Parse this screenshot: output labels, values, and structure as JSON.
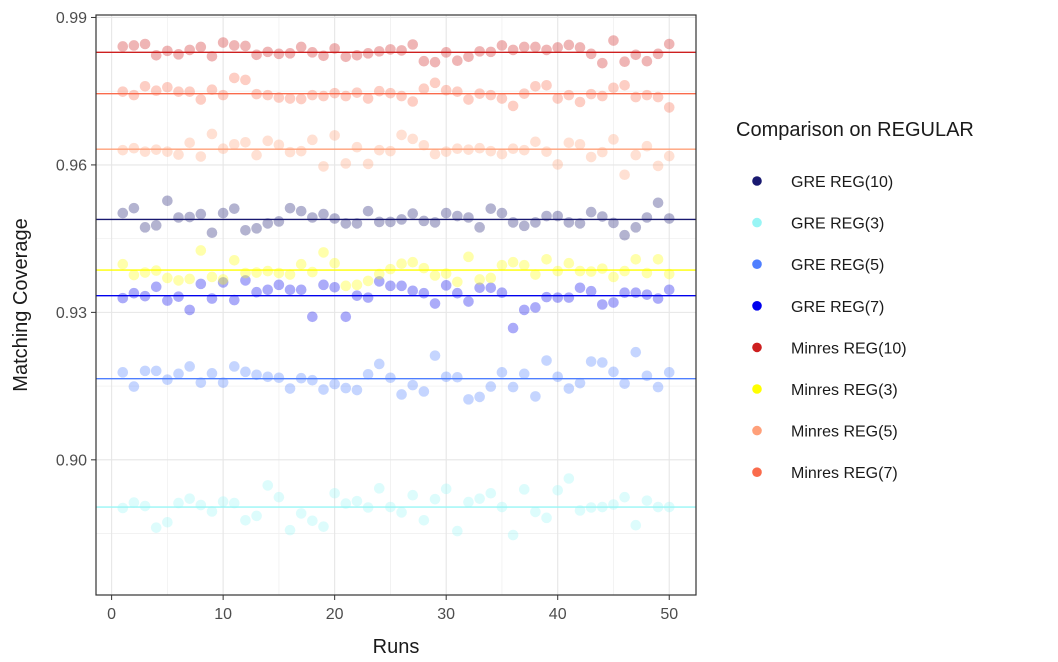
{
  "chart_data": {
    "type": "scatter",
    "title": "",
    "xlabel": "Runs",
    "ylabel": "Matching Coverage",
    "xlim": [
      -1.4,
      52.4
    ],
    "ylim": [
      0.8725,
      0.9905
    ],
    "xticks": [
      0,
      10,
      20,
      30,
      40,
      50
    ],
    "xtick_labels": [
      "0",
      "10",
      "20",
      "30",
      "40",
      "50"
    ],
    "yticks": [
      0.9,
      0.93,
      0.96,
      0.99
    ],
    "ytick_labels": [
      "0.90",
      "0.93",
      "0.96",
      "0.99"
    ],
    "grid": true,
    "legend": {
      "title": "Comparison on REGULAR",
      "position": "right"
    },
    "x": [
      1,
      2,
      3,
      4,
      5,
      6,
      7,
      8,
      9,
      10,
      11,
      12,
      13,
      14,
      15,
      16,
      17,
      18,
      19,
      20,
      21,
      22,
      23,
      24,
      25,
      26,
      27,
      28,
      29,
      30,
      31,
      32,
      33,
      34,
      35,
      36,
      37,
      38,
      39,
      40,
      41,
      42,
      43,
      44,
      45,
      46,
      47,
      48,
      49,
      50
    ],
    "series": [
      {
        "name": "GRE REG(10)",
        "color": "#191970",
        "mean": 0.9489,
        "values": [
          0.9502,
          0.9512,
          0.9473,
          0.9477,
          0.9527,
          0.9493,
          0.9494,
          0.95,
          0.9462,
          0.9502,
          0.9511,
          0.9467,
          0.9471,
          0.9481,
          0.9485,
          0.9512,
          0.9506,
          0.9493,
          0.95,
          0.9491,
          0.9481,
          0.9481,
          0.9506,
          0.9484,
          0.9484,
          0.9489,
          0.9501,
          0.9486,
          0.9483,
          0.9502,
          0.9496,
          0.9493,
          0.9473,
          0.9511,
          0.9502,
          0.9483,
          0.9476,
          0.9483,
          0.9496,
          0.9496,
          0.9483,
          0.9481,
          0.9504,
          0.9495,
          0.9482,
          0.9457,
          0.9473,
          0.9493,
          0.9523,
          0.9491
        ]
      },
      {
        "name": "GRE REG(3)",
        "color": "#98f5f5",
        "mean": 0.8904,
        "values": [
          0.8902,
          0.8913,
          0.8906,
          0.8862,
          0.8873,
          0.8912,
          0.8921,
          0.8908,
          0.8895,
          0.8915,
          0.8912,
          0.8877,
          0.8886,
          0.8948,
          0.8924,
          0.8857,
          0.8891,
          0.8876,
          0.8864,
          0.8932,
          0.8911,
          0.8916,
          0.8903,
          0.8942,
          0.8904,
          0.8893,
          0.8928,
          0.8877,
          0.892,
          0.8941,
          0.8855,
          0.8914,
          0.8921,
          0.8932,
          0.8904,
          0.8847,
          0.894,
          0.8894,
          0.8882,
          0.8938,
          0.8962,
          0.8897,
          0.8903,
          0.8904,
          0.8909,
          0.8924,
          0.8867,
          0.8917,
          0.8904,
          0.8904
        ]
      },
      {
        "name": "GRE REG(5)",
        "color": "#4f7fff",
        "mean": 0.9165,
        "values": [
          0.9178,
          0.9149,
          0.9181,
          0.9181,
          0.9163,
          0.9175,
          0.919,
          0.9157,
          0.9176,
          0.9157,
          0.919,
          0.9179,
          0.9173,
          0.9169,
          0.9167,
          0.9145,
          0.9166,
          0.9162,
          0.9143,
          0.9154,
          0.9146,
          0.9142,
          0.9174,
          0.9195,
          0.9167,
          0.9133,
          0.9152,
          0.9139,
          0.9212,
          0.9169,
          0.9168,
          0.9123,
          0.9128,
          0.9149,
          0.9178,
          0.9148,
          0.9175,
          0.9129,
          0.9202,
          0.9169,
          0.9145,
          0.9156,
          0.92,
          0.9198,
          0.9179,
          0.9155,
          0.9219,
          0.9171,
          0.9148,
          0.9178
        ]
      },
      {
        "name": "GRE REG(7)",
        "color": "#0000ee",
        "mean": 0.9334,
        "values": [
          0.9329,
          0.9339,
          0.9333,
          0.9352,
          0.9324,
          0.9332,
          0.9305,
          0.9358,
          0.9328,
          0.9361,
          0.9325,
          0.9365,
          0.9341,
          0.9346,
          0.9356,
          0.9346,
          0.9346,
          0.9291,
          0.9356,
          0.9351,
          0.9291,
          0.9334,
          0.933,
          0.9363,
          0.9354,
          0.9354,
          0.9344,
          0.9339,
          0.9318,
          0.9355,
          0.9339,
          0.9322,
          0.935,
          0.935,
          0.934,
          0.9268,
          0.9305,
          0.931,
          0.9331,
          0.933,
          0.933,
          0.935,
          0.9343,
          0.9316,
          0.932,
          0.934,
          0.934,
          0.9336,
          0.9328,
          0.9346
        ]
      },
      {
        "name": "Minres REG(10)",
        "color": "#cd1f1f",
        "mean": 0.9829,
        "values": [
          0.9841,
          0.9843,
          0.9846,
          0.9823,
          0.9832,
          0.9825,
          0.9834,
          0.984,
          0.9821,
          0.9849,
          0.9843,
          0.9842,
          0.9824,
          0.983,
          0.9826,
          0.9827,
          0.984,
          0.9829,
          0.9822,
          0.9837,
          0.982,
          0.9823,
          0.9827,
          0.9831,
          0.9835,
          0.9833,
          0.9845,
          0.9811,
          0.9809,
          0.9829,
          0.9812,
          0.982,
          0.9831,
          0.983,
          0.9843,
          0.9834,
          0.984,
          0.984,
          0.9834,
          0.9839,
          0.9844,
          0.9839,
          0.9826,
          0.9807,
          0.9853,
          0.981,
          0.9824,
          0.9811,
          0.9826,
          0.9846
        ]
      },
      {
        "name": "Minres REG(3)",
        "color": "#ffff00",
        "mean": 0.9386,
        "values": [
          0.9398,
          0.9376,
          0.9381,
          0.9385,
          0.937,
          0.9365,
          0.9368,
          0.9426,
          0.9372,
          0.9367,
          0.9406,
          0.938,
          0.9381,
          0.9384,
          0.938,
          0.9377,
          0.9398,
          0.9382,
          0.9422,
          0.94,
          0.9354,
          0.9356,
          0.9364,
          0.9378,
          0.9388,
          0.9399,
          0.9402,
          0.939,
          0.9375,
          0.9379,
          0.9362,
          0.9413,
          0.9367,
          0.937,
          0.9396,
          0.9402,
          0.9396,
          0.9377,
          0.9408,
          0.9384,
          0.94,
          0.9384,
          0.9383,
          0.9389,
          0.9372,
          0.9384,
          0.9408,
          0.938,
          0.9408,
          0.9378
        ]
      },
      {
        "name": "Minres REG(5)",
        "color": "#ffa07a",
        "mean": 0.9632,
        "values": [
          0.963,
          0.9634,
          0.9627,
          0.9631,
          0.9627,
          0.9621,
          0.9645,
          0.9617,
          0.9663,
          0.9633,
          0.9642,
          0.9646,
          0.962,
          0.9649,
          0.9641,
          0.9626,
          0.9628,
          0.9651,
          0.9597,
          0.966,
          0.9603,
          0.9636,
          0.9602,
          0.963,
          0.9628,
          0.9661,
          0.9653,
          0.964,
          0.9622,
          0.9627,
          0.9633,
          0.9631,
          0.9634,
          0.9628,
          0.9622,
          0.9633,
          0.963,
          0.9647,
          0.9627,
          0.9601,
          0.9645,
          0.9642,
          0.9616,
          0.9626,
          0.9652,
          0.958,
          0.962,
          0.9638,
          0.9598,
          0.9618
        ]
      },
      {
        "name": "Minres REG(7)",
        "color": "#fa6b4c",
        "mean": 0.9745,
        "values": [
          0.9749,
          0.9742,
          0.976,
          0.9751,
          0.9758,
          0.9749,
          0.9749,
          0.9733,
          0.9753,
          0.9742,
          0.9777,
          0.9773,
          0.9744,
          0.9742,
          0.9737,
          0.9735,
          0.9734,
          0.9742,
          0.974,
          0.9746,
          0.974,
          0.9747,
          0.9735,
          0.975,
          0.9746,
          0.974,
          0.9729,
          0.9755,
          0.9767,
          0.9752,
          0.9749,
          0.9733,
          0.9745,
          0.9742,
          0.9735,
          0.972,
          0.9745,
          0.976,
          0.9762,
          0.9735,
          0.9742,
          0.9728,
          0.9744,
          0.974,
          0.9757,
          0.9762,
          0.9738,
          0.9742,
          0.9738,
          0.9717
        ]
      }
    ]
  }
}
